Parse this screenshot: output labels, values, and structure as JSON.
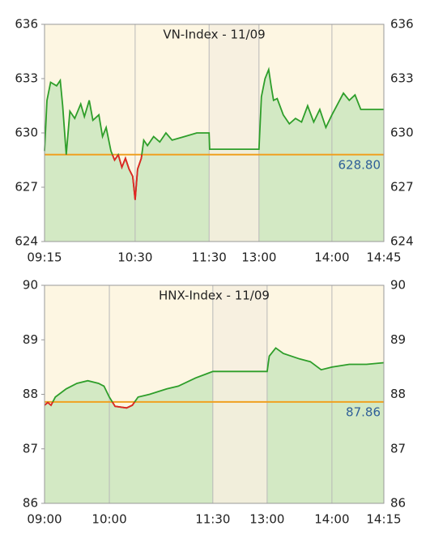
{
  "chart_data": [
    {
      "type": "line",
      "title": "VN-Index - 11/09",
      "x": [
        "09:15",
        "09:17",
        "09:20",
        "09:25",
        "09:28",
        "09:30",
        "09:33",
        "09:36",
        "09:40",
        "09:45",
        "09:48",
        "09:52",
        "09:55",
        "10:00",
        "10:03",
        "10:06",
        "10:10",
        "10:13",
        "10:16",
        "10:19",
        "10:22",
        "10:25",
        "10:28",
        "10:30",
        "10:32",
        "10:35",
        "10:37",
        "10:40",
        "10:45",
        "10:50",
        "10:55",
        "11:00",
        "11:10",
        "11:20",
        "11:30",
        "11:31",
        "13:00",
        "13:02",
        "13:05",
        "13:08",
        "13:10",
        "13:12",
        "13:15",
        "13:20",
        "13:25",
        "13:30",
        "13:35",
        "13:40",
        "13:45",
        "13:50",
        "13:55",
        "14:00",
        "14:05",
        "14:10",
        "14:15",
        "14:20",
        "14:25",
        "14:45"
      ],
      "values": [
        629.0,
        631.8,
        632.8,
        632.6,
        632.9,
        631.5,
        628.8,
        631.2,
        630.8,
        631.6,
        630.9,
        631.8,
        630.7,
        631.0,
        629.8,
        630.3,
        629.0,
        628.5,
        628.8,
        628.1,
        628.6,
        628.0,
        627.6,
        626.3,
        628.0,
        628.6,
        629.6,
        629.3,
        629.8,
        629.5,
        630.0,
        629.6,
        629.8,
        630.0,
        630.0,
        629.1,
        629.1,
        632.0,
        633.0,
        633.5,
        632.6,
        631.8,
        631.9,
        631.0,
        630.5,
        630.8,
        630.6,
        631.5,
        630.6,
        631.3,
        630.3,
        631.0,
        631.6,
        632.2,
        631.8,
        632.1,
        631.3,
        631.3
      ],
      "color": "#2e9e2a",
      "below_color": "#e32424",
      "fill": "#d3e9c4",
      "reference": {
        "value": 628.8,
        "label": "628.80",
        "color": "#f0a020"
      },
      "xlim": [
        "09:15",
        "14:45"
      ],
      "xticks": [
        "09:15",
        "10:30",
        "11:30",
        "13:00",
        "14:00",
        "14:45"
      ],
      "break": [
        "11:30",
        "13:00"
      ],
      "ylim": [
        624,
        636
      ],
      "yticks": [
        624,
        627,
        630,
        633,
        636
      ],
      "grid": "x"
    },
    {
      "type": "line",
      "title": "HNX-Index - 11/09",
      "x": [
        "09:00",
        "09:03",
        "09:06",
        "09:10",
        "09:20",
        "09:30",
        "09:40",
        "09:50",
        "09:55",
        "10:00",
        "10:05",
        "10:15",
        "10:20",
        "10:25",
        "10:35",
        "10:50",
        "11:00",
        "11:15",
        "11:30",
        "13:00",
        "13:02",
        "13:08",
        "13:15",
        "13:30",
        "13:40",
        "13:50",
        "14:00",
        "14:05",
        "14:10",
        "14:15"
      ],
      "values": [
        87.8,
        87.85,
        87.8,
        87.95,
        88.1,
        88.2,
        88.25,
        88.2,
        88.15,
        87.95,
        87.78,
        87.75,
        87.8,
        87.95,
        88.0,
        88.1,
        88.15,
        88.3,
        88.42,
        88.42,
        88.7,
        88.85,
        88.75,
        88.65,
        88.6,
        88.45,
        88.5,
        88.55,
        88.55,
        88.58
      ],
      "color": "#2e9e2a",
      "below_color": "#e32424",
      "fill": "#d3e9c4",
      "reference": {
        "value": 87.86,
        "label": "87.86",
        "color": "#f0a020"
      },
      "xlim": [
        "09:00",
        "14:15"
      ],
      "xticks": [
        "09:00",
        "10:00",
        "11:30",
        "13:00",
        "14:00",
        "14:15"
      ],
      "break": [
        "11:30",
        "13:00"
      ],
      "ylim": [
        86,
        90
      ],
      "yticks": [
        86,
        87,
        88,
        89,
        90
      ],
      "grid": "x"
    }
  ]
}
